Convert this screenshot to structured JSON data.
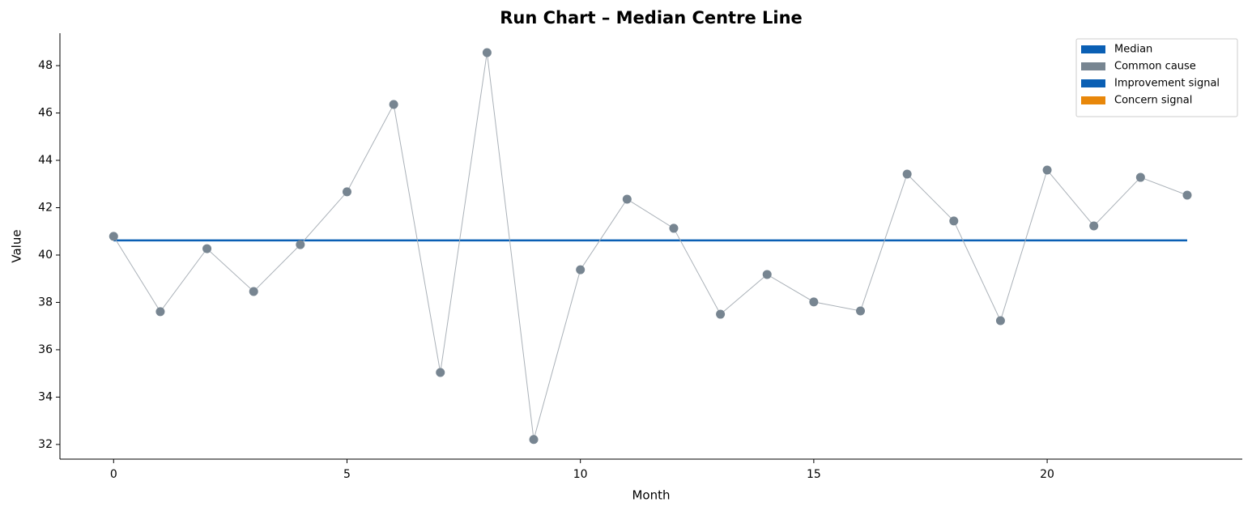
{
  "chart_data": {
    "type": "line",
    "title": "Run Chart – Median Centre Line",
    "xlabel": "Month",
    "ylabel": "Value",
    "x": [
      0,
      1,
      2,
      3,
      4,
      5,
      6,
      7,
      8,
      9,
      10,
      11,
      12,
      13,
      14,
      15,
      16,
      17,
      18,
      19,
      20,
      21,
      22,
      23
    ],
    "series": [
      {
        "name": "Common cause",
        "color": "#778591",
        "line_color": "#aab1b8",
        "values": [
          40.79,
          37.61,
          40.27,
          38.46,
          40.44,
          42.67,
          46.36,
          35.04,
          48.55,
          32.21,
          39.38,
          42.36,
          41.13,
          37.5,
          39.18,
          38.02,
          37.64,
          43.42,
          41.44,
          37.23,
          43.59,
          41.23,
          43.28,
          42.53
        ]
      }
    ],
    "median": {
      "name": "Median",
      "color": "#0a5fb4",
      "value": 40.62
    },
    "signals": [
      {
        "name": "Improvement signal",
        "color": "#0a5fb4"
      },
      {
        "name": "Concern signal",
        "color": "#e8870a"
      }
    ],
    "xlim": [
      -1.15,
      24.18
    ],
    "ylim": [
      31.38,
      49.37
    ],
    "xticks": [
      0,
      5,
      10,
      15,
      20
    ],
    "yticks": [
      32,
      34,
      36,
      38,
      40,
      42,
      44,
      46,
      48
    ],
    "legend": "upper right",
    "grid": false
  }
}
